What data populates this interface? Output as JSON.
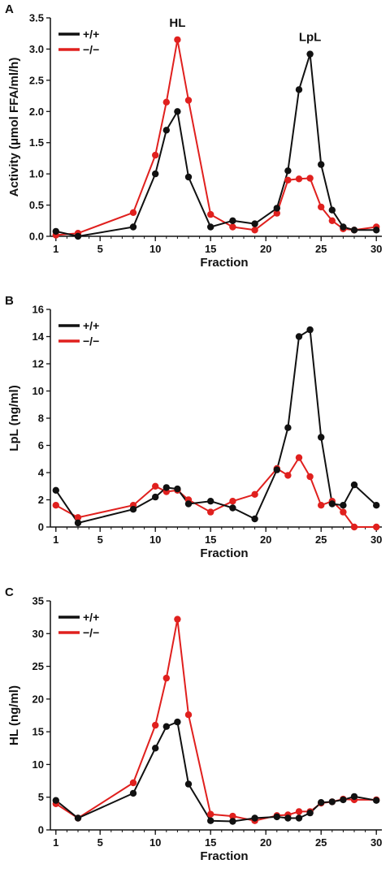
{
  "colors": {
    "wild_type": "#111111",
    "knockout": "#e0201e"
  },
  "chart_data": [
    {
      "panel": "A",
      "type": "line",
      "xlabel": "Fraction",
      "ylabel": "Activity (μmol FFA/ml/h)",
      "xticks": [
        "1",
        "5",
        "10",
        "15",
        "20",
        "25",
        "30"
      ],
      "yticks": [
        "0.0",
        "0.5",
        "1.0",
        "1.5",
        "2.0",
        "2.5",
        "3.0",
        "3.5"
      ],
      "xlim": [
        0.5,
        30.5
      ],
      "ylim": [
        0,
        3.5
      ],
      "legend": [
        "+/+",
        "−/−"
      ],
      "annotations": [
        "HL",
        "LpL"
      ],
      "series": [
        {
          "name": "+/+",
          "x": [
            1,
            3,
            8,
            10,
            11,
            12,
            13,
            15,
            17,
            19,
            21,
            22,
            23,
            24,
            25,
            26,
            27,
            28,
            30
          ],
          "y": [
            0.08,
            0.0,
            0.15,
            1.0,
            1.7,
            2.0,
            0.95,
            0.15,
            0.25,
            0.2,
            0.45,
            1.05,
            2.35,
            2.92,
            1.15,
            0.42,
            0.15,
            0.1,
            0.1
          ]
        },
        {
          "name": "−/−",
          "x": [
            1,
            3,
            8,
            10,
            11,
            12,
            13,
            15,
            17,
            19,
            21,
            22,
            23,
            24,
            25,
            26,
            27,
            28,
            30
          ],
          "y": [
            0.02,
            0.05,
            0.38,
            1.3,
            2.15,
            3.15,
            2.18,
            0.35,
            0.15,
            0.1,
            0.37,
            0.9,
            0.92,
            0.93,
            0.47,
            0.25,
            0.12,
            0.1,
            0.15
          ]
        }
      ]
    },
    {
      "panel": "B",
      "type": "line",
      "xlabel": "Fraction",
      "ylabel": "LpL (ng/ml)",
      "xticks": [
        "1",
        "5",
        "10",
        "15",
        "20",
        "25",
        "30"
      ],
      "yticks": [
        "0",
        "2",
        "4",
        "6",
        "8",
        "10",
        "12",
        "14",
        "16"
      ],
      "xlim": [
        0.5,
        30.5
      ],
      "ylim": [
        0,
        16
      ],
      "legend": [
        "+/+",
        "−/−"
      ],
      "series": [
        {
          "name": "+/+",
          "x": [
            1,
            3,
            8,
            10,
            11,
            12,
            13,
            15,
            17,
            19,
            21,
            22,
            23,
            24,
            25,
            26,
            27,
            28,
            30
          ],
          "y": [
            2.7,
            0.3,
            1.3,
            2.2,
            2.9,
            2.8,
            1.7,
            1.9,
            1.4,
            0.6,
            4.2,
            7.3,
            14.0,
            14.5,
            6.6,
            1.7,
            1.6,
            3.1,
            1.6
          ]
        },
        {
          "name": "−/−",
          "x": [
            1,
            3,
            8,
            10,
            11,
            12,
            13,
            15,
            17,
            19,
            21,
            22,
            23,
            24,
            25,
            26,
            27,
            28,
            30
          ],
          "y": [
            1.6,
            0.7,
            1.6,
            3.0,
            2.6,
            2.7,
            2.0,
            1.1,
            1.9,
            2.4,
            4.3,
            3.8,
            5.1,
            3.7,
            1.6,
            1.9,
            1.1,
            0.0,
            0.0
          ]
        }
      ]
    },
    {
      "panel": "C",
      "type": "line",
      "xlabel": "Fraction",
      "ylabel": "HL (ng/ml)",
      "xticks": [
        "1",
        "5",
        "10",
        "15",
        "20",
        "25",
        "30"
      ],
      "yticks": [
        "0",
        "5",
        "10",
        "15",
        "20",
        "25",
        "30",
        "35"
      ],
      "xlim": [
        0.5,
        30.5
      ],
      "ylim": [
        0,
        35
      ],
      "legend": [
        "+/+",
        "−/−"
      ],
      "series": [
        {
          "name": "+/+",
          "x": [
            1,
            3,
            8,
            10,
            11,
            12,
            13,
            15,
            17,
            19,
            21,
            22,
            23,
            24,
            25,
            26,
            27,
            28,
            30
          ],
          "y": [
            4.5,
            1.8,
            5.6,
            12.5,
            15.8,
            16.5,
            7.0,
            1.4,
            1.3,
            1.8,
            2.0,
            1.8,
            1.8,
            2.6,
            4.2,
            4.3,
            4.6,
            5.1,
            4.5
          ]
        },
        {
          "name": "−/−",
          "x": [
            1,
            3,
            8,
            10,
            11,
            12,
            13,
            15,
            17,
            19,
            21,
            22,
            23,
            24,
            25,
            26,
            27,
            28,
            30
          ],
          "y": [
            4.0,
            1.8,
            7.2,
            16.0,
            23.2,
            32.2,
            17.6,
            2.4,
            2.1,
            1.4,
            2.2,
            2.3,
            2.8,
            2.8,
            4.1,
            4.3,
            4.7,
            4.6,
            4.6
          ]
        }
      ]
    }
  ]
}
